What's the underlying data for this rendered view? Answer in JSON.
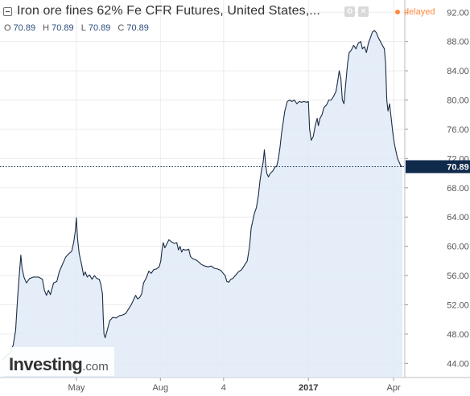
{
  "header": {
    "title": "Iron ore fines 62% Fe CFR Futures, United States,...",
    "status": "delayed",
    "icons": [
      "settings-icon",
      "close-icon"
    ],
    "status_color": "#ff8a3d"
  },
  "ohlc": {
    "open_key": "O",
    "open": "70.89",
    "high_key": "H",
    "high": "70.89",
    "low_key": "L",
    "low": "70.89",
    "close_key": "C",
    "close": "70.89"
  },
  "logo": {
    "main": "Investing",
    "suffix": ".com"
  },
  "current_price_label": "70.89",
  "colors": {
    "line": "#1b2c45",
    "fill": "#dfeaf7",
    "price_tag": "#102a4c",
    "grid": "#ececec"
  },
  "chart_data": {
    "type": "area",
    "title": "Iron ore fines 62% Fe CFR Futures, United States,...",
    "y_ticks": [
      "92.00",
      "88.00",
      "84.00",
      "80.00",
      "76.00",
      "72.00",
      "68.00",
      "64.00",
      "60.00",
      "56.00",
      "52.00",
      "48.00",
      "44.00"
    ],
    "ylim": [
      42.5,
      92.8
    ],
    "x_ticks": [
      {
        "label": "May",
        "t": 0.185,
        "bold": false
      },
      {
        "label": "Aug",
        "t": 0.395,
        "bold": false
      },
      {
        "label": "4",
        "t": 0.553,
        "bold": false
      },
      {
        "label": "2017",
        "t": 0.765,
        "bold": true
      },
      {
        "label": "Apr",
        "t": 0.978,
        "bold": false
      }
    ],
    "current_price": 70.89,
    "grid": true,
    "series": [
      {
        "points": [
          [
            0.0,
            44.5
          ],
          [
            0.01,
            45.0
          ],
          [
            0.02,
            45.5
          ],
          [
            0.027,
            46.5
          ],
          [
            0.033,
            48.5
          ],
          [
            0.038,
            53.0
          ],
          [
            0.042,
            56.0
          ],
          [
            0.046,
            58.8
          ],
          [
            0.049,
            57.0
          ],
          [
            0.054,
            55.8
          ],
          [
            0.06,
            55.0
          ],
          [
            0.068,
            55.6
          ],
          [
            0.078,
            55.8
          ],
          [
            0.09,
            55.8
          ],
          [
            0.1,
            55.5
          ],
          [
            0.105,
            54.0
          ],
          [
            0.11,
            53.3
          ],
          [
            0.115,
            54.0
          ],
          [
            0.12,
            53.4
          ],
          [
            0.128,
            55.0
          ],
          [
            0.136,
            55.2
          ],
          [
            0.142,
            56.5
          ],
          [
            0.15,
            57.5
          ],
          [
            0.158,
            58.5
          ],
          [
            0.166,
            59.0
          ],
          [
            0.173,
            59.3
          ],
          [
            0.178,
            60.5
          ],
          [
            0.182,
            62.0
          ],
          [
            0.185,
            63.9
          ],
          [
            0.188,
            61.0
          ],
          [
            0.192,
            59.0
          ],
          [
            0.198,
            57.5
          ],
          [
            0.203,
            56.0
          ],
          [
            0.207,
            56.5
          ],
          [
            0.212,
            55.8
          ],
          [
            0.218,
            56.1
          ],
          [
            0.224,
            55.5
          ],
          [
            0.23,
            56.0
          ],
          [
            0.236,
            55.6
          ],
          [
            0.242,
            55.5
          ],
          [
            0.246,
            54.8
          ],
          [
            0.25,
            53.5
          ],
          [
            0.252,
            50.5
          ],
          [
            0.254,
            48.0
          ],
          [
            0.257,
            47.5
          ],
          [
            0.262,
            48.5
          ],
          [
            0.268,
            49.8
          ],
          [
            0.276,
            50.3
          ],
          [
            0.284,
            50.2
          ],
          [
            0.292,
            50.5
          ],
          [
            0.3,
            50.6
          ],
          [
            0.308,
            50.8
          ],
          [
            0.316,
            51.5
          ],
          [
            0.322,
            52.0
          ],
          [
            0.328,
            52.7
          ],
          [
            0.333,
            53.3
          ],
          [
            0.338,
            52.8
          ],
          [
            0.343,
            53.0
          ],
          [
            0.348,
            53.5
          ],
          [
            0.353,
            55.0
          ],
          [
            0.358,
            55.5
          ],
          [
            0.362,
            56.0
          ],
          [
            0.366,
            56.6
          ],
          [
            0.372,
            56.3
          ],
          [
            0.378,
            56.8
          ],
          [
            0.385,
            56.9
          ],
          [
            0.392,
            57.2
          ],
          [
            0.396,
            58.0
          ],
          [
            0.399,
            59.5
          ],
          [
            0.402,
            60.5
          ],
          [
            0.406,
            59.8
          ],
          [
            0.41,
            60.2
          ],
          [
            0.416,
            60.9
          ],
          [
            0.423,
            60.6
          ],
          [
            0.43,
            60.4
          ],
          [
            0.436,
            60.5
          ],
          [
            0.44,
            59.5
          ],
          [
            0.444,
            60.0
          ],
          [
            0.448,
            59.2
          ],
          [
            0.452,
            59.6
          ],
          [
            0.456,
            59.5
          ],
          [
            0.461,
            59.5
          ],
          [
            0.466,
            59.6
          ],
          [
            0.47,
            58.6
          ],
          [
            0.476,
            58.3
          ],
          [
            0.482,
            58.2
          ],
          [
            0.49,
            57.9
          ],
          [
            0.498,
            57.5
          ],
          [
            0.506,
            57.3
          ],
          [
            0.514,
            57.2
          ],
          [
            0.522,
            57.3
          ],
          [
            0.53,
            57.0
          ],
          [
            0.538,
            56.9
          ],
          [
            0.546,
            56.7
          ],
          [
            0.552,
            56.3
          ],
          [
            0.557,
            56.0
          ],
          [
            0.561,
            55.2
          ],
          [
            0.566,
            55.1
          ],
          [
            0.571,
            55.5
          ],
          [
            0.576,
            55.6
          ],
          [
            0.582,
            56.0
          ],
          [
            0.59,
            56.5
          ],
          [
            0.598,
            56.8
          ],
          [
            0.606,
            57.5
          ],
          [
            0.612,
            58.0
          ],
          [
            0.618,
            60.0
          ],
          [
            0.622,
            62.5
          ],
          [
            0.626,
            63.5
          ],
          [
            0.63,
            64.5
          ],
          [
            0.635,
            65.3
          ],
          [
            0.64,
            67.0
          ],
          [
            0.644,
            69.0
          ],
          [
            0.648,
            70.5
          ],
          [
            0.652,
            71.5
          ],
          [
            0.655,
            73.2
          ],
          [
            0.658,
            71.3
          ],
          [
            0.661,
            70.0
          ],
          [
            0.665,
            69.5
          ],
          [
            0.67,
            70.0
          ],
          [
            0.676,
            70.3
          ],
          [
            0.681,
            70.8
          ],
          [
            0.686,
            71.0
          ],
          [
            0.69,
            72.0
          ],
          [
            0.694,
            73.5
          ],
          [
            0.698,
            75.5
          ],
          [
            0.702,
            77.0
          ],
          [
            0.706,
            78.5
          ],
          [
            0.712,
            79.8
          ],
          [
            0.718,
            80.0
          ],
          [
            0.724,
            79.8
          ],
          [
            0.73,
            80.0
          ],
          [
            0.736,
            79.5
          ],
          [
            0.742,
            79.8
          ],
          [
            0.748,
            79.7
          ],
          [
            0.754,
            79.8
          ],
          [
            0.76,
            79.7
          ],
          [
            0.765,
            79.8
          ],
          [
            0.768,
            76.0
          ],
          [
            0.772,
            74.5
          ],
          [
            0.777,
            75.0
          ],
          [
            0.782,
            76.5
          ],
          [
            0.787,
            77.5
          ],
          [
            0.79,
            76.5
          ],
          [
            0.794,
            77.5
          ],
          [
            0.799,
            78.0
          ],
          [
            0.804,
            79.0
          ],
          [
            0.81,
            79.3
          ],
          [
            0.816,
            80.0
          ],
          [
            0.822,
            80.0
          ],
          [
            0.828,
            80.5
          ],
          [
            0.834,
            81.2
          ],
          [
            0.838,
            82.5
          ],
          [
            0.842,
            84.0
          ],
          [
            0.846,
            83.0
          ],
          [
            0.85,
            80.0
          ],
          [
            0.854,
            79.5
          ],
          [
            0.858,
            82.0
          ],
          [
            0.863,
            85.0
          ],
          [
            0.867,
            86.5
          ],
          [
            0.872,
            86.8
          ],
          [
            0.878,
            87.5
          ],
          [
            0.884,
            87.0
          ],
          [
            0.89,
            87.8
          ],
          [
            0.896,
            88.0
          ],
          [
            0.9,
            87.0
          ],
          [
            0.905,
            87.3
          ],
          [
            0.91,
            86.5
          ],
          [
            0.915,
            87.8
          ],
          [
            0.92,
            88.5
          ],
          [
            0.925,
            89.3
          ],
          [
            0.93,
            89.5
          ],
          [
            0.935,
            89.2
          ],
          [
            0.94,
            88.5
          ],
          [
            0.945,
            88.0
          ],
          [
            0.95,
            87.5
          ],
          [
            0.955,
            87.0
          ],
          [
            0.958,
            85.0
          ],
          [
            0.961,
            80.0
          ],
          [
            0.964,
            78.5
          ],
          [
            0.968,
            79.5
          ],
          [
            0.972,
            77.5
          ],
          [
            0.976,
            75.5
          ],
          [
            0.98,
            74.0
          ],
          [
            0.984,
            73.0
          ],
          [
            0.988,
            72.0
          ],
          [
            0.992,
            71.5
          ],
          [
            0.996,
            71.0
          ],
          [
            1.0,
            70.89
          ]
        ]
      }
    ]
  }
}
